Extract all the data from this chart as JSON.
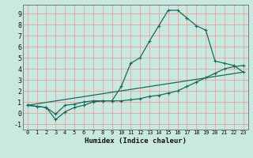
{
  "bg_color": "#c8e8e0",
  "grid_color": "#f0a0a0",
  "line_color": "#1a6b5a",
  "xlabel": "Humidex (Indice chaleur)",
  "xlim": [
    -0.5,
    23.5
  ],
  "ylim": [
    -1.5,
    9.8
  ],
  "xticks": [
    0,
    1,
    2,
    3,
    4,
    5,
    6,
    7,
    8,
    9,
    10,
    11,
    12,
    13,
    14,
    15,
    16,
    17,
    18,
    19,
    20,
    21,
    22,
    23
  ],
  "yticks": [
    -1,
    0,
    1,
    2,
    3,
    4,
    5,
    6,
    7,
    8,
    9
  ],
  "line1_x": [
    0,
    1,
    2,
    3,
    4,
    5,
    6,
    7,
    8,
    9,
    10,
    11,
    12,
    13,
    14,
    15,
    16,
    17,
    18,
    19,
    20,
    21,
    22,
    23
  ],
  "line1_y": [
    0.7,
    0.6,
    0.5,
    -0.1,
    0.7,
    0.8,
    1.0,
    1.1,
    1.1,
    1.1,
    2.4,
    4.5,
    5.0,
    6.5,
    7.9,
    9.3,
    9.3,
    8.6,
    7.9,
    7.5,
    4.7,
    4.5,
    4.3,
    3.7
  ],
  "line2_x": [
    0,
    1,
    2,
    3,
    4,
    5,
    6,
    7,
    8,
    9,
    10,
    11,
    12,
    13,
    14,
    15,
    16,
    17,
    18,
    19,
    20,
    21,
    22,
    23
  ],
  "line2_y": [
    0.7,
    0.6,
    0.5,
    -0.6,
    0.1,
    0.5,
    0.7,
    1.0,
    1.1,
    1.1,
    1.1,
    1.2,
    1.3,
    1.5,
    1.6,
    1.8,
    2.0,
    2.4,
    2.8,
    3.2,
    3.6,
    4.0,
    4.2,
    4.3
  ],
  "line3_x": [
    0,
    23
  ],
  "line3_y": [
    0.7,
    3.7
  ]
}
